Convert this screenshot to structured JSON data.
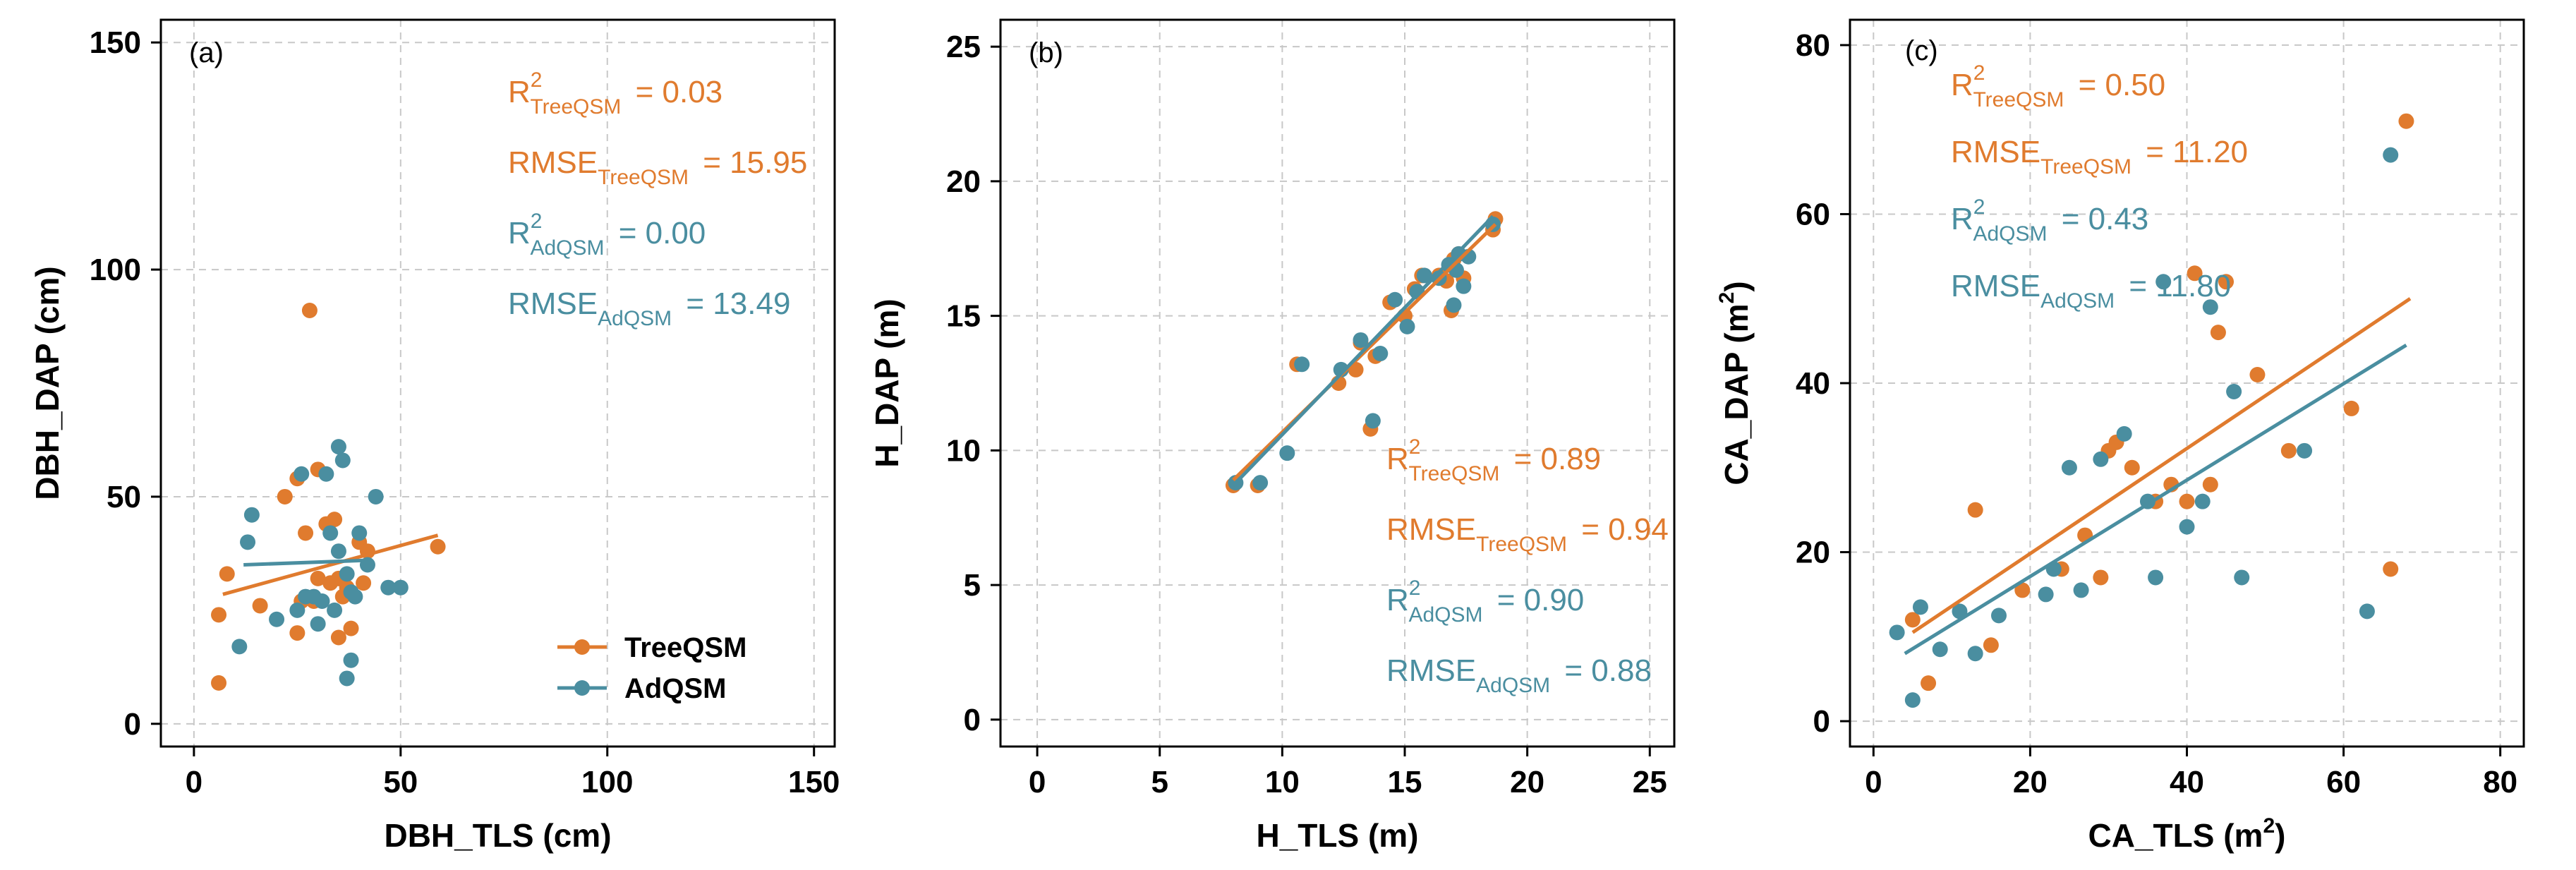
{
  "colors": {
    "treeqsm": "#E07B2E",
    "adqsm": "#4A8EA0",
    "grid": "#C8C8C8",
    "axis": "#000000"
  },
  "legend": {
    "treeqsm": "TreeQSM",
    "adqsm": "AdQSM"
  },
  "chart_data": [
    {
      "type": "scatter",
      "panel": "(a)",
      "xlabel": "DBH_TLS (cm)",
      "ylabel": "DBH_DAP (cm)",
      "xlim": [
        -8,
        155
      ],
      "ylim": [
        -5,
        155
      ],
      "xticks": [
        "0",
        "50",
        "100",
        "150"
      ],
      "yticks": [
        "0",
        "50",
        "100",
        "150"
      ],
      "xtick_values": [
        0,
        50,
        100,
        150
      ],
      "ytick_values": [
        0,
        50,
        100,
        150
      ],
      "series": [
        {
          "name": "TreeQSM",
          "points": [
            [
              6,
              9
            ],
            [
              6,
              24
            ],
            [
              8,
              33
            ],
            [
              16,
              26
            ],
            [
              22,
              50
            ],
            [
              25,
              54
            ],
            [
              25,
              20
            ],
            [
              26,
              27
            ],
            [
              27,
              42
            ],
            [
              28,
              91
            ],
            [
              29,
              27
            ],
            [
              30,
              56
            ],
            [
              30,
              32
            ],
            [
              32,
              44
            ],
            [
              33,
              31
            ],
            [
              34,
              45
            ],
            [
              35,
              32
            ],
            [
              35,
              19
            ],
            [
              36,
              28
            ],
            [
              37,
              30
            ],
            [
              38,
              21
            ],
            [
              38,
              29
            ],
            [
              40,
              40
            ],
            [
              41,
              31
            ],
            [
              42,
              38
            ],
            [
              59,
              39
            ]
          ],
          "fit": [
            [
              7,
              28.5
            ],
            [
              59,
              41.5
            ]
          ]
        },
        {
          "name": "AdQSM",
          "points": [
            [
              11,
              17
            ],
            [
              13,
              40
            ],
            [
              14,
              46
            ],
            [
              20,
              23
            ],
            [
              25,
              25
            ],
            [
              26,
              55
            ],
            [
              27,
              28
            ],
            [
              29,
              28
            ],
            [
              30,
              22
            ],
            [
              31,
              27
            ],
            [
              32,
              55
            ],
            [
              33,
              42
            ],
            [
              34,
              25
            ],
            [
              35,
              61
            ],
            [
              35,
              38
            ],
            [
              36,
              58
            ],
            [
              37,
              10
            ],
            [
              37,
              33
            ],
            [
              38,
              14
            ],
            [
              38,
              29
            ],
            [
              39,
              28
            ],
            [
              40,
              42
            ],
            [
              42,
              35
            ],
            [
              44,
              50
            ],
            [
              47,
              30
            ],
            [
              50,
              30
            ]
          ],
          "fit": [
            [
              12,
              35
            ],
            [
              42,
              36
            ]
          ]
        }
      ],
      "annotations": [
        {
          "label": "R",
          "sup": "2",
          "sub": "TreeQSM",
          "value": "= 0.03",
          "color": "treeqsm"
        },
        {
          "label": "RMSE",
          "sub": "TreeQSM",
          "value": "= 15.95",
          "color": "treeqsm"
        },
        {
          "label": "R",
          "sup": "2",
          "sub": "AdQSM",
          "value": "= 0.00",
          "color": "adqsm"
        },
        {
          "label": "RMSE",
          "sub": "AdQSM",
          "value": "= 13.49",
          "color": "adqsm"
        }
      ]
    },
    {
      "type": "scatter",
      "panel": "(b)",
      "xlabel": "H_TLS (m)",
      "ylabel": "H_DAP (m)",
      "xlim": [
        -1.5,
        26
      ],
      "ylim": [
        -1,
        26
      ],
      "xticks": [
        "0",
        "5",
        "10",
        "15",
        "20",
        "25"
      ],
      "yticks": [
        "0",
        "5",
        "10",
        "15",
        "20",
        "25"
      ],
      "xtick_values": [
        0,
        5,
        10,
        15,
        20,
        25
      ],
      "ytick_values": [
        0,
        5,
        10,
        15,
        20,
        25
      ],
      "series": [
        {
          "name": "TreeQSM",
          "points": [
            [
              8,
              8.7
            ],
            [
              9,
              8.7
            ],
            [
              10.6,
              13.2
            ],
            [
              12.3,
              12.5
            ],
            [
              13,
              13
            ],
            [
              13.2,
              14
            ],
            [
              13.6,
              10.8
            ],
            [
              13.8,
              13.5
            ],
            [
              14.4,
              15.5
            ],
            [
              15,
              15
            ],
            [
              15.4,
              16
            ],
            [
              15.7,
              16.5
            ],
            [
              16.4,
              16.5
            ],
            [
              16.7,
              16.3
            ],
            [
              16.9,
              15.2
            ],
            [
              17,
              17.1
            ],
            [
              17.2,
              17.3
            ],
            [
              17.4,
              16.4
            ],
            [
              18.6,
              18.2
            ],
            [
              18.7,
              18.6
            ]
          ],
          "fit": [
            [
              8,
              8.9
            ],
            [
              18.7,
              18.4
            ]
          ]
        },
        {
          "name": "AdQSM",
          "points": [
            [
              8.1,
              8.8
            ],
            [
              9.1,
              8.8
            ],
            [
              10.2,
              9.9
            ],
            [
              10.8,
              13.2
            ],
            [
              12.4,
              13
            ],
            [
              13.2,
              14.1
            ],
            [
              13.7,
              11.1
            ],
            [
              14,
              13.6
            ],
            [
              14.6,
              15.6
            ],
            [
              15.1,
              14.6
            ],
            [
              15.5,
              15.9
            ],
            [
              15.8,
              16.5
            ],
            [
              16.4,
              16.4
            ],
            [
              16.8,
              16.9
            ],
            [
              17,
              15.4
            ],
            [
              17.2,
              17.3
            ],
            [
              17.4,
              16.1
            ],
            [
              17.6,
              17.2
            ],
            [
              18.6,
              18.4
            ],
            [
              17.1,
              16.7
            ]
          ],
          "fit": [
            [
              8,
              8.7
            ],
            [
              18.6,
              18.7
            ]
          ]
        }
      ],
      "annotations": [
        {
          "label": "R",
          "sup": "2",
          "sub": "TreeQSM",
          "value": "= 0.89",
          "color": "treeqsm"
        },
        {
          "label": "RMSE",
          "sub": "TreeQSM",
          "value": "= 0.94",
          "color": "treeqsm"
        },
        {
          "label": "R",
          "sup": "2",
          "sub": "AdQSM",
          "value": "= 0.90",
          "color": "adqsm"
        },
        {
          "label": "RMSE",
          "sub": "AdQSM",
          "value": "= 0.88",
          "color": "adqsm"
        }
      ]
    },
    {
      "type": "scatter",
      "panel": "(c)",
      "xlabel": "CA_TLS (m",
      "xlabel_sup": "2",
      "xlabel_tail": ")",
      "ylabel": "CA_DAP (m",
      "ylabel_sup": "2",
      "ylabel_tail": ")",
      "xlim": [
        -3,
        83
      ],
      "ylim": [
        -3,
        83
      ],
      "xticks": [
        "0",
        "20",
        "40",
        "60",
        "80"
      ],
      "yticks": [
        "0",
        "20",
        "40",
        "60",
        "80"
      ],
      "xtick_values": [
        0,
        20,
        40,
        60,
        80
      ],
      "ytick_values": [
        0,
        20,
        40,
        60,
        80
      ],
      "series": [
        {
          "name": "TreeQSM",
          "points": [
            [
              5,
              12
            ],
            [
              7,
              4.5
            ],
            [
              13,
              25
            ],
            [
              15,
              9
            ],
            [
              19,
              15.5
            ],
            [
              24,
              18
            ],
            [
              27,
              22
            ],
            [
              29,
              17
            ],
            [
              30,
              32
            ],
            [
              31,
              33
            ],
            [
              33,
              30
            ],
            [
              36,
              26
            ],
            [
              38,
              28
            ],
            [
              40,
              26
            ],
            [
              41,
              53
            ],
            [
              43,
              28
            ],
            [
              44,
              46
            ],
            [
              45,
              52
            ],
            [
              49,
              41
            ],
            [
              53,
              32
            ],
            [
              61,
              37
            ],
            [
              66,
              18
            ],
            [
              68,
              71
            ]
          ],
          "fit": [
            [
              5,
              10.5
            ],
            [
              68.5,
              50
            ]
          ]
        },
        {
          "name": "AdQSM",
          "points": [
            [
              3,
              10.5
            ],
            [
              5,
              2.5
            ],
            [
              6,
              13.5
            ],
            [
              8.5,
              8.5
            ],
            [
              11,
              13
            ],
            [
              13,
              8
            ],
            [
              16,
              12.5
            ],
            [
              22,
              15
            ],
            [
              23,
              18
            ],
            [
              25,
              30
            ],
            [
              26.5,
              15.5
            ],
            [
              29,
              31
            ],
            [
              32,
              34
            ],
            [
              35,
              26
            ],
            [
              36,
              17
            ],
            [
              37,
              52
            ],
            [
              40,
              23
            ],
            [
              42,
              26
            ],
            [
              43,
              49
            ],
            [
              46,
              39
            ],
            [
              47,
              17
            ],
            [
              55,
              32
            ],
            [
              63,
              13
            ],
            [
              66,
              67
            ]
          ],
          "fit": [
            [
              4,
              8
            ],
            [
              68,
              44.5
            ]
          ]
        }
      ],
      "annotations": [
        {
          "label": "R",
          "sup": "2",
          "sub": "TreeQSM",
          "value": "= 0.50",
          "color": "treeqsm"
        },
        {
          "label": "RMSE",
          "sub": "TreeQSM",
          "value": "= 11.20",
          "color": "treeqsm"
        },
        {
          "label": "R",
          "sup": "2",
          "sub": "AdQSM",
          "value": "= 0.43",
          "color": "adqsm"
        },
        {
          "label": "RMSE",
          "sub": "AdQSM",
          "value": "= 11.80",
          "color": "adqsm"
        }
      ]
    }
  ]
}
